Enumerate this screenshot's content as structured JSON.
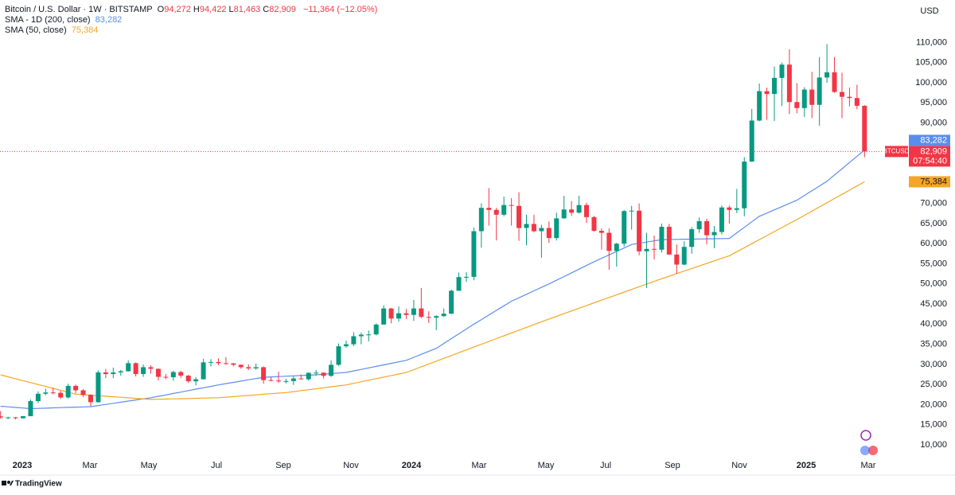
{
  "chart_data": {
    "type": "candlestick",
    "title": "Bitcoin / U.S. Dollar · 1W · BITSTAMP",
    "ohlc_header": [
      {
        "key": "O",
        "text": "94,272"
      },
      {
        "key": "H",
        "text": "94,422"
      },
      {
        "key": "L",
        "text": "81,463"
      },
      {
        "key": "C",
        "text": "82,909"
      }
    ],
    "change": "−11,364 (−12.05%)",
    "currency": "USD",
    "symbol": "BTCUSD",
    "close_label": "82,909",
    "countdown": "07:54:40",
    "brand": "TradingView",
    "up_color": "#089981",
    "down_color": "#f23645",
    "x_labels": [
      "2023",
      "Mar",
      "May",
      "Jul",
      "Sep",
      "Nov",
      "2024",
      "Mar",
      "May",
      "Jul",
      "Sep",
      "Nov",
      "2025",
      "Mar"
    ],
    "ylim": [
      2880,
      120560
    ],
    "yticks": [
      {
        "value": 10000,
        "label": "10,000"
      },
      {
        "value": 15000,
        "label": "15,000"
      },
      {
        "value": 20000,
        "label": "20,000"
      },
      {
        "value": 25000,
        "label": "25,000"
      },
      {
        "value": 30000,
        "label": "30,000"
      },
      {
        "value": 35000,
        "label": "35,000"
      },
      {
        "value": 40000,
        "label": "40,000"
      },
      {
        "value": 45000,
        "label": "45,000"
      },
      {
        "value": 50000,
        "label": "50,000"
      },
      {
        "value": 55000,
        "label": "55,000"
      },
      {
        "value": 60000,
        "label": "60,000"
      },
      {
        "value": 65000,
        "label": "65,000"
      },
      {
        "value": 70000,
        "label": "70,000"
      },
      {
        "value": 90000,
        "label": "90,000"
      },
      {
        "value": 95000,
        "label": "95,000"
      },
      {
        "value": 100000,
        "label": "100,000"
      },
      {
        "value": 105000,
        "label": "105,000"
      },
      {
        "value": 110000,
        "label": "110,000"
      }
    ],
    "grid": false,
    "candles": {
      "open": [
        17100,
        16800,
        16840,
        16620,
        17130,
        20880,
        22700,
        23020,
        22930,
        21780,
        24650,
        23550,
        22430,
        20600,
        28000,
        27600,
        28000,
        28300,
        30300,
        27600,
        29300,
        28900,
        26900,
        26800,
        28100,
        27200,
        25800,
        26300,
        30500,
        30600,
        30300,
        30250,
        29900,
        29300,
        29000,
        29300,
        26100,
        26000,
        25800,
        25850,
        26500,
        26300,
        27900,
        27950,
        27150,
        29900,
        34500,
        35000,
        37000,
        37400,
        37450,
        39900,
        43900,
        41400,
        42700,
        42300,
        43900,
        41800,
        41600,
        42000,
        42600,
        48300,
        51700,
        51750,
        63100,
        68900,
        68400,
        67200,
        69600,
        69400,
        63900,
        64900,
        63100,
        63900,
        61400,
        66300,
        68500,
        67700,
        69600,
        66600,
        63200,
        62700,
        58200,
        60000,
        68100,
        68200,
        58100,
        58700,
        58500,
        64200,
        57300,
        54800,
        59200,
        63600,
        65600,
        62100,
        62900,
        69000,
        68400,
        68800,
        80400,
        90600,
        97900,
        97200,
        101200,
        104500,
        95200,
        93700,
        98300,
        94500,
        101300,
        102600,
        97700,
        96500,
        96200,
        94272
      ],
      "high": [
        18400,
        17000,
        16950,
        17200,
        21300,
        23300,
        23950,
        24200,
        23450,
        25200,
        25000,
        23900,
        22600,
        28500,
        28900,
        29200,
        28600,
        31000,
        30500,
        30000,
        29800,
        29000,
        27600,
        28400,
        28400,
        27400,
        26800,
        31400,
        31300,
        31500,
        31800,
        30400,
        30000,
        30000,
        30200,
        29500,
        26800,
        28200,
        26400,
        27000,
        27500,
        28000,
        28600,
        28000,
        31000,
        35200,
        35900,
        38000,
        37900,
        38400,
        40200,
        44700,
        44000,
        44400,
        43800,
        46000,
        49000,
        43200,
        42200,
        43900,
        48600,
        52800,
        52900,
        64000,
        70000,
        73800,
        68900,
        71700,
        71300,
        72800,
        67200,
        67200,
        64700,
        65500,
        67700,
        71900,
        70600,
        71900,
        70200,
        66900,
        63800,
        63800,
        60200,
        68400,
        69400,
        70000,
        62700,
        62000,
        65000,
        64900,
        59800,
        60600,
        64100,
        66500,
        66200,
        64400,
        69500,
        69500,
        73600,
        81500,
        93500,
        99800,
        98800,
        104000,
        105000,
        108300,
        99900,
        98900,
        102700,
        106400,
        109600,
        106400,
        102500,
        98800,
        99500,
        94422
      ],
      "low": [
        16500,
        16400,
        16300,
        16500,
        17100,
        20400,
        22300,
        22600,
        21400,
        21500,
        22800,
        21900,
        19600,
        20500,
        26600,
        26600,
        27200,
        28200,
        27000,
        26900,
        27700,
        26000,
        26300,
        25900,
        26600,
        25400,
        24800,
        26300,
        29500,
        29800,
        29900,
        29500,
        28900,
        28600,
        28700,
        25200,
        25800,
        25400,
        25300,
        24900,
        26300,
        26000,
        27200,
        26500,
        26900,
        29600,
        34100,
        34500,
        35000,
        35700,
        37200,
        39900,
        40200,
        40600,
        41300,
        40800,
        41500,
        40300,
        38500,
        41800,
        42500,
        48300,
        50500,
        50900,
        59000,
        64500,
        60800,
        66800,
        64500,
        60700,
        59600,
        62800,
        56500,
        60200,
        60800,
        66200,
        66900,
        67500,
        65100,
        63000,
        58500,
        53500,
        54300,
        59300,
        63500,
        57100,
        49000,
        56100,
        57800,
        57200,
        52500,
        54600,
        57500,
        62700,
        59800,
        58900,
        62300,
        65000,
        67600,
        66800,
        80300,
        90400,
        90800,
        90500,
        94200,
        92200,
        92400,
        91500,
        91200,
        89300,
        100000,
        97500,
        91200,
        94100,
        93400,
        81463
      ],
      "close": [
        16800,
        16840,
        16620,
        17130,
        20880,
        22700,
        23020,
        22930,
        21780,
        24650,
        23550,
        22430,
        20600,
        28000,
        27600,
        28000,
        28300,
        30300,
        27600,
        29300,
        28900,
        26900,
        26800,
        28100,
        27200,
        25800,
        26300,
        30500,
        30600,
        30300,
        30250,
        29900,
        29300,
        29000,
        29300,
        26100,
        26000,
        25800,
        25850,
        26500,
        26300,
        27900,
        27950,
        27150,
        29900,
        34500,
        35000,
        37000,
        37400,
        37450,
        39900,
        43900,
        41400,
        42700,
        42300,
        43900,
        41800,
        41600,
        42000,
        42600,
        48300,
        51700,
        51750,
        63100,
        68900,
        68400,
        67200,
        69600,
        69400,
        63900,
        64900,
        63100,
        63900,
        61400,
        66300,
        68500,
        67700,
        69600,
        66600,
        63200,
        62700,
        58200,
        60000,
        68100,
        68200,
        58100,
        58700,
        58500,
        64200,
        57300,
        54800,
        59200,
        63600,
        65600,
        62100,
        62900,
        69000,
        68400,
        68800,
        80400,
        90600,
        97900,
        97200,
        101200,
        104500,
        95200,
        93700,
        98300,
        94500,
        101300,
        102600,
        97700,
        96500,
        96200,
        94273,
        82909
      ]
    },
    "series": [
      {
        "name": "SMA - 1D (200, close)",
        "color": "#5b8def",
        "last_value_label": "83,282",
        "values": [
          19600,
          19450,
          19300,
          19150,
          19000,
          19060,
          19120,
          19190,
          19250,
          19310,
          19370,
          19440,
          19500,
          19780,
          20050,
          20330,
          20600,
          20880,
          21150,
          21430,
          21700,
          22060,
          22410,
          22770,
          23120,
          23480,
          23840,
          24190,
          24540,
          24900,
          25220,
          25530,
          25850,
          26170,
          26480,
          26800,
          26890,
          26970,
          27060,
          27140,
          27230,
          27310,
          27400,
          27550,
          27700,
          27850,
          28000,
          28380,
          28750,
          29130,
          29500,
          29880,
          30250,
          30630,
          31000,
          31750,
          32500,
          33250,
          34000,
          35200,
          36400,
          37600,
          38800,
          40000,
          41140,
          42280,
          43420,
          44560,
          45700,
          46560,
          47420,
          48280,
          49140,
          50000,
          50920,
          51830,
          52750,
          53670,
          54580,
          55500,
          56360,
          57220,
          58080,
          58940,
          59800,
          60100,
          60400,
          60700,
          61000,
          61030,
          61070,
          61100,
          61130,
          61170,
          61200,
          61230,
          61270,
          61300,
          62680,
          64050,
          65430,
          66800,
          67600,
          68400,
          69200,
          70000,
          70800,
          71980,
          73150,
          74330,
          75500,
          77060,
          78610,
          80170,
          81730,
          83282
        ]
      },
      {
        "name": "SMA (50, close)",
        "color": "#f5a623",
        "last_value_label": "75,384",
        "values": [
          27400,
          26920,
          26440,
          25960,
          25480,
          25000,
          24520,
          24040,
          23560,
          23080,
          22600,
          22470,
          22340,
          22210,
          22080,
          21950,
          21820,
          21690,
          21560,
          21430,
          21300,
          21340,
          21390,
          21430,
          21480,
          21520,
          21570,
          21610,
          21660,
          21700,
          21840,
          21990,
          22130,
          22280,
          22420,
          22570,
          22710,
          22860,
          23000,
          23240,
          23480,
          23710,
          23950,
          24190,
          24430,
          24660,
          24900,
          25290,
          25680,
          26060,
          26450,
          26840,
          27230,
          27610,
          28000,
          28700,
          29400,
          30100,
          30800,
          31500,
          32200,
          32900,
          33600,
          34300,
          35000,
          35700,
          36400,
          37100,
          37800,
          38500,
          39200,
          39900,
          40600,
          41270,
          41940,
          42610,
          43290,
          43960,
          44630,
          45300,
          45970,
          46630,
          47300,
          47970,
          48630,
          49300,
          49970,
          50630,
          51300,
          51930,
          52570,
          53200,
          53830,
          54470,
          55100,
          55730,
          56370,
          57000,
          58000,
          59000,
          60000,
          61000,
          62000,
          63000,
          64000,
          65000,
          66000,
          67040,
          68090,
          69130,
          70170,
          71220,
          72260,
          73300,
          74340,
          75384
        ]
      }
    ]
  }
}
